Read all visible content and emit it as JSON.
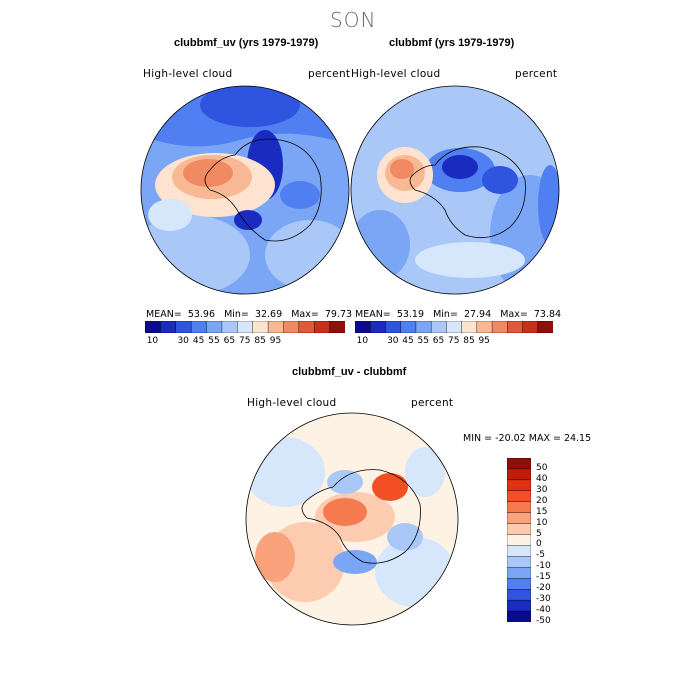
{
  "page": {
    "title": "SON"
  },
  "panels": [
    {
      "title": "clubbmf_uv (yrs 1979-1979)",
      "left_label": "High-level cloud",
      "right_label": "percent",
      "stats": {
        "mean_label": "MEAN=",
        "mean": "53.96",
        "min_label": "Min=",
        "min": "32.69",
        "max_label": "Max=",
        "max": "79.73"
      }
    },
    {
      "title": "clubbmf (yrs 1979-1979)",
      "left_label": "High-level cloud",
      "right_label": "percent",
      "stats": {
        "mean_label": "MEAN=",
        "mean": "53.19",
        "min_label": "Min=",
        "min": "27.94",
        "max_label": "Max=",
        "max": "73.84"
      }
    },
    {
      "title": "clubbmf_uv - clubbmf",
      "left_label": "High-level cloud",
      "right_label": "percent",
      "stats_line": "MIN = -20.02  MAX =  24.15"
    }
  ],
  "colorbar_abs": {
    "colors": [
      "#0a0a8c",
      "#1a2bbf",
      "#2f55e0",
      "#4f7ff0",
      "#7aa6f5",
      "#a9c8f7",
      "#d6e6fb",
      "#fde3d0",
      "#f9b894",
      "#f08a62",
      "#e2583a",
      "#c8301c",
      "#8f0f0a"
    ],
    "tick_labels": [
      "10",
      "30",
      "45",
      "55",
      "65",
      "75",
      "85",
      "95"
    ]
  },
  "colorbar_diff": {
    "colors": [
      "#8f0f0a",
      "#c01c0a",
      "#e03212",
      "#f25024",
      "#f57a50",
      "#f9a27c",
      "#fdcbb0",
      "#fdf2e4",
      "#d6e6fb",
      "#a9c8f7",
      "#7aa6f5",
      "#4f7ff0",
      "#2f55e0",
      "#1a2bbf",
      "#0a0a8c"
    ],
    "tick_labels": [
      "50",
      "40",
      "30",
      "20",
      "15",
      "10",
      "5",
      "0",
      "-5",
      "-10",
      "-15",
      "-20",
      "-30",
      "-40",
      "-50"
    ]
  }
}
